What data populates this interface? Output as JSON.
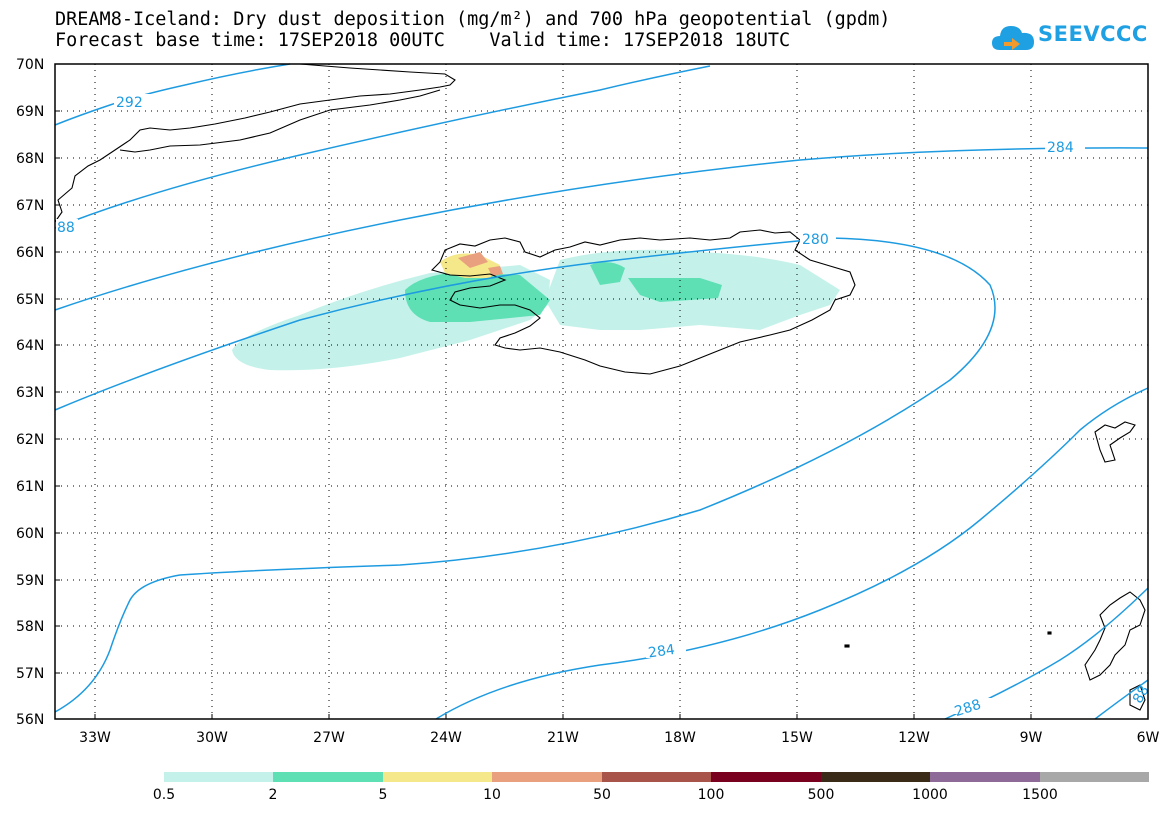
{
  "header": {
    "title_line1": "DREAM8-Iceland: Dry dust deposition (mg/m²) and 700 hPa geopotential (gpdm)",
    "title_line2": "Forecast base time: 17SEP2018 00UTC    Valid time: 17SEP2018 18UTC"
  },
  "logo": {
    "text": "SEEVCCC",
    "icon": "cloud-icon"
  },
  "map": {
    "lat_labels": [
      "70N",
      "69N",
      "68N",
      "67N",
      "66N",
      "65N",
      "64N",
      "63N",
      "62N",
      "61N",
      "60N",
      "59N",
      "58N",
      "57N",
      "56N"
    ],
    "lon_labels": [
      "33W",
      "30W",
      "27W",
      "24W",
      "21W",
      "18W",
      "15W",
      "12W",
      "9W",
      "6W"
    ],
    "contour_labels": [
      "292",
      "284",
      "88",
      "280",
      "284",
      "288",
      "88"
    ],
    "colors": {
      "contour": "#1e9be0",
      "frame": "#000000"
    }
  },
  "legend": {
    "labels": [
      "0.5",
      "2",
      "5",
      "10",
      "50",
      "100",
      "500",
      "1000",
      "1500"
    ],
    "colors": [
      "#c4f2ea",
      "#5ee0b4",
      "#f5e88a",
      "#e8a07e",
      "#a8544a",
      "#7a0020",
      "#3a2a18",
      "#8e6a98",
      "#a8a8a8"
    ]
  }
}
